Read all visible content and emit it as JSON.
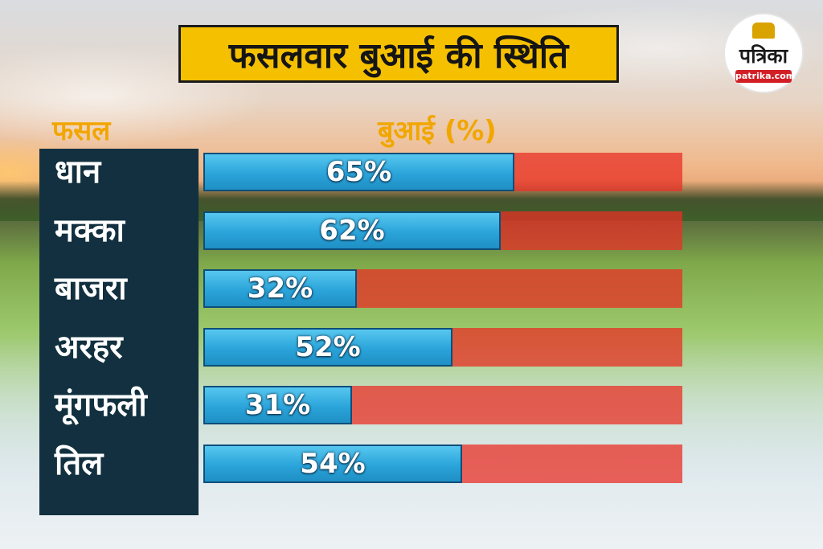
{
  "title": "फसलवार बुआई की स्थिति",
  "logo": {
    "name": "पत्रिका",
    "site": "patrika.com"
  },
  "colors": {
    "title_bg": "#f5c000",
    "panel_bg": "#12303f",
    "header_text": "#f2a600",
    "bar_fill": "#2aa4da",
    "bar_track": "#e83026"
  },
  "chart_data": {
    "type": "bar",
    "orientation": "horizontal",
    "column_headers": {
      "category": "फसल",
      "value": "बुआई (%)"
    },
    "categories": [
      "धान",
      "मक्का",
      "बाजरा",
      "अरहर",
      "मूंगफली",
      "तिल"
    ],
    "values": [
      65,
      62,
      32,
      52,
      31,
      54
    ],
    "value_labels": [
      "65%",
      "62%",
      "32%",
      "52%",
      "31%",
      "54%"
    ],
    "xlim": [
      0,
      100
    ],
    "grid": false,
    "legend": "none"
  }
}
